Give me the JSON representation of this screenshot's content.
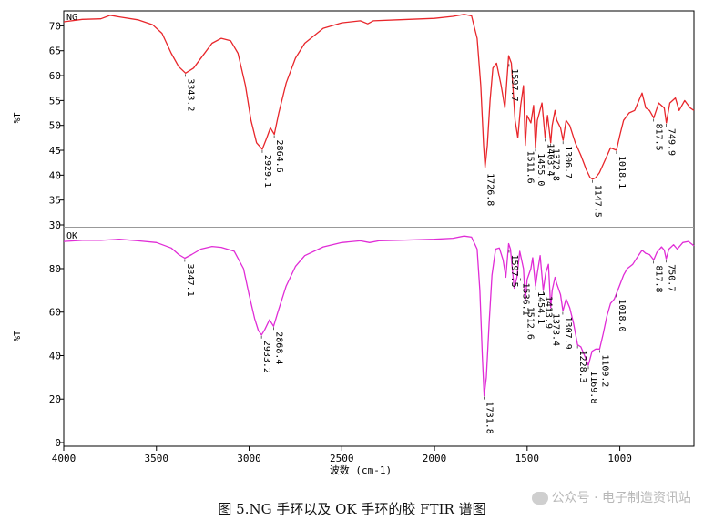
{
  "caption": "图 5.NG 手环以及 OK 手环的胶 FTIR 谱图",
  "watermark": "公众号 · 电子制造资讯站",
  "chart_data": {
    "type": "line",
    "x_label": "波数 (cm-1)",
    "x_range": [
      4000,
      600
    ],
    "x_ticks": [
      "4000",
      "3500",
      "3000",
      "2500",
      "2000",
      "1500",
      "1000"
    ],
    "x_tick_values": [
      4000,
      3500,
      3000,
      2500,
      2000,
      1500,
      1000
    ],
    "panels": [
      {
        "name": "NG",
        "y_label": "%T",
        "color": "#e8262b",
        "y_range": [
          30,
          73
        ],
        "y_ticks": [
          "70",
          "65",
          "60",
          "55",
          "50",
          "45",
          "40",
          "35",
          "30"
        ],
        "y_tick_values": [
          70,
          65,
          60,
          55,
          50,
          45,
          40,
          35,
          30
        ],
        "points": [
          [
            4000,
            70.8
          ],
          [
            3900,
            71.3
          ],
          [
            3800,
            71.4
          ],
          [
            3750,
            72.1
          ],
          [
            3700,
            71.8
          ],
          [
            3600,
            71.2
          ],
          [
            3520,
            70.2
          ],
          [
            3470,
            68.5
          ],
          [
            3420,
            64.5
          ],
          [
            3380,
            61.8
          ],
          [
            3343,
            60.5
          ],
          [
            3300,
            61.5
          ],
          [
            3250,
            64.0
          ],
          [
            3200,
            66.5
          ],
          [
            3150,
            67.5
          ],
          [
            3100,
            67.0
          ],
          [
            3060,
            64.5
          ],
          [
            3020,
            58.0
          ],
          [
            2990,
            51.0
          ],
          [
            2960,
            46.5
          ],
          [
            2929,
            45.2
          ],
          [
            2905,
            47.5
          ],
          [
            2885,
            49.5
          ],
          [
            2864,
            48.2
          ],
          [
            2840,
            52.5
          ],
          [
            2800,
            58.5
          ],
          [
            2750,
            63.5
          ],
          [
            2700,
            66.5
          ],
          [
            2600,
            69.5
          ],
          [
            2500,
            70.6
          ],
          [
            2400,
            71.0
          ],
          [
            2360,
            70.4
          ],
          [
            2330,
            71.0
          ],
          [
            2200,
            71.2
          ],
          [
            2000,
            71.5
          ],
          [
            1900,
            71.9
          ],
          [
            1840,
            72.3
          ],
          [
            1800,
            72.0
          ],
          [
            1770,
            67.5
          ],
          [
            1750,
            58.0
          ],
          [
            1735,
            46.0
          ],
          [
            1727,
            41.5
          ],
          [
            1715,
            46.0
          ],
          [
            1700,
            55.0
          ],
          [
            1685,
            61.5
          ],
          [
            1665,
            62.5
          ],
          [
            1640,
            58.0
          ],
          [
            1620,
            53.5
          ],
          [
            1600,
            64.0
          ],
          [
            1585,
            62.5
          ],
          [
            1565,
            51.0
          ],
          [
            1550,
            47.5
          ],
          [
            1535,
            54.0
          ],
          [
            1520,
            58.0
          ],
          [
            1510,
            46.0
          ],
          [
            1500,
            52.0
          ],
          [
            1480,
            50.5
          ],
          [
            1465,
            54.0
          ],
          [
            1455,
            45.5
          ],
          [
            1445,
            51.0
          ],
          [
            1420,
            54.5
          ],
          [
            1403,
            47.5
          ],
          [
            1390,
            52.0
          ],
          [
            1373,
            46.5
          ],
          [
            1365,
            50.0
          ],
          [
            1350,
            53.0
          ],
          [
            1340,
            51.0
          ],
          [
            1320,
            49.5
          ],
          [
            1306,
            47.0
          ],
          [
            1290,
            51.0
          ],
          [
            1270,
            50.0
          ],
          [
            1240,
            46.5
          ],
          [
            1210,
            44.0
          ],
          [
            1180,
            41.0
          ],
          [
            1160,
            39.5
          ],
          [
            1147,
            39.2
          ],
          [
            1130,
            39.5
          ],
          [
            1110,
            40.5
          ],
          [
            1080,
            43.0
          ],
          [
            1050,
            45.5
          ],
          [
            1018,
            45.0
          ],
          [
            1000,
            48.0
          ],
          [
            980,
            51.0
          ],
          [
            950,
            52.5
          ],
          [
            920,
            53.0
          ],
          [
            880,
            56.5
          ],
          [
            860,
            53.5
          ],
          [
            840,
            53.0
          ],
          [
            817,
            51.5
          ],
          [
            790,
            54.5
          ],
          [
            760,
            53.5
          ],
          [
            749,
            50.5
          ],
          [
            730,
            54.5
          ],
          [
            700,
            55.5
          ],
          [
            680,
            53.0
          ],
          [
            650,
            55.0
          ],
          [
            620,
            53.5
          ],
          [
            600,
            53.0
          ]
        ],
        "peak_labels": [
          {
            "x": 3343.2,
            "y": 60.5,
            "text": "3343.2"
          },
          {
            "x": 2929.1,
            "y": 45.2,
            "text": "2929.1"
          },
          {
            "x": 2864.6,
            "y": 48.2,
            "text": "2864.6"
          },
          {
            "x": 1726.8,
            "y": 41.5,
            "text": "1726.8"
          },
          {
            "x": 1597.7,
            "y": 62.5,
            "text": "1597.7"
          },
          {
            "x": 1511.6,
            "y": 46.0,
            "text": "1511.6"
          },
          {
            "x": 1455.0,
            "y": 45.5,
            "text": "1455.0"
          },
          {
            "x": 1403.4,
            "y": 47.5,
            "text": "1403.4"
          },
          {
            "x": 1372.8,
            "y": 46.5,
            "text": "1372.8"
          },
          {
            "x": 1306.7,
            "y": 47.0,
            "text": "1306.7"
          },
          {
            "x": 1147.5,
            "y": 39.2,
            "text": "1147.5"
          },
          {
            "x": 1018.1,
            "y": 45.0,
            "text": "1018.1"
          },
          {
            "x": 817.5,
            "y": 51.5,
            "text": "817.5"
          },
          {
            "x": 749.9,
            "y": 50.5,
            "text": "749.9"
          }
        ]
      },
      {
        "name": "OK",
        "y_label": "%T",
        "color": "#e02cd6",
        "y_range": [
          0,
          98
        ],
        "y_ticks": [
          "80",
          "60",
          "40",
          "20",
          "0"
        ],
        "y_tick_values": [
          80,
          60,
          40,
          20,
          0
        ],
        "points": [
          [
            4000,
            92.5
          ],
          [
            3900,
            93.0
          ],
          [
            3800,
            93.0
          ],
          [
            3700,
            93.5
          ],
          [
            3600,
            92.8
          ],
          [
            3500,
            92.0
          ],
          [
            3420,
            89.5
          ],
          [
            3380,
            86.5
          ],
          [
            3347,
            84.8
          ],
          [
            3310,
            86.5
          ],
          [
            3260,
            89.0
          ],
          [
            3200,
            90.2
          ],
          [
            3150,
            89.8
          ],
          [
            3080,
            88.0
          ],
          [
            3030,
            80.0
          ],
          [
            3000,
            68.0
          ],
          [
            2970,
            57.0
          ],
          [
            2950,
            51.5
          ],
          [
            2933,
            49.5
          ],
          [
            2915,
            52.0
          ],
          [
            2890,
            56.5
          ],
          [
            2868,
            53.5
          ],
          [
            2845,
            60.0
          ],
          [
            2800,
            72.0
          ],
          [
            2750,
            81.0
          ],
          [
            2700,
            86.0
          ],
          [
            2600,
            90.0
          ],
          [
            2500,
            92.0
          ],
          [
            2400,
            92.8
          ],
          [
            2350,
            92.0
          ],
          [
            2300,
            92.8
          ],
          [
            2200,
            93.0
          ],
          [
            2000,
            93.5
          ],
          [
            1900,
            94.0
          ],
          [
            1840,
            95.0
          ],
          [
            1800,
            94.5
          ],
          [
            1770,
            89.0
          ],
          [
            1755,
            70.0
          ],
          [
            1742,
            40.0
          ],
          [
            1732,
            21.5
          ],
          [
            1720,
            30.0
          ],
          [
            1705,
            55.0
          ],
          [
            1690,
            77.0
          ],
          [
            1670,
            89.0
          ],
          [
            1650,
            89.5
          ],
          [
            1630,
            84.0
          ],
          [
            1615,
            76.0
          ],
          [
            1600,
            91.5
          ],
          [
            1590,
            89.0
          ],
          [
            1570,
            71.0
          ],
          [
            1555,
            76.0
          ],
          [
            1540,
            88.0
          ],
          [
            1520,
            80.0
          ],
          [
            1510,
            65.0
          ],
          [
            1500,
            75.0
          ],
          [
            1480,
            80.0
          ],
          [
            1470,
            85.0
          ],
          [
            1455,
            72.0
          ],
          [
            1445,
            78.0
          ],
          [
            1430,
            86.0
          ],
          [
            1413,
            70.0
          ],
          [
            1400,
            78.0
          ],
          [
            1385,
            82.0
          ],
          [
            1373,
            62.0
          ],
          [
            1365,
            70.0
          ],
          [
            1350,
            76.0
          ],
          [
            1340,
            73.0
          ],
          [
            1320,
            68.0
          ],
          [
            1307,
            60.5
          ],
          [
            1290,
            66.0
          ],
          [
            1270,
            62.0
          ],
          [
            1250,
            55.0
          ],
          [
            1228,
            45.0
          ],
          [
            1210,
            44.0
          ],
          [
            1190,
            40.0
          ],
          [
            1170,
            35.5
          ],
          [
            1150,
            42.0
          ],
          [
            1130,
            43.0
          ],
          [
            1109,
            43.0
          ],
          [
            1090,
            50.0
          ],
          [
            1070,
            58.0
          ],
          [
            1050,
            64.0
          ],
          [
            1030,
            66.0
          ],
          [
            1018,
            68.5
          ],
          [
            1000,
            72.5
          ],
          [
            980,
            77.0
          ],
          [
            960,
            80.0
          ],
          [
            930,
            82.0
          ],
          [
            900,
            86.0
          ],
          [
            880,
            88.5
          ],
          [
            860,
            87.0
          ],
          [
            840,
            86.5
          ],
          [
            817,
            84.0
          ],
          [
            800,
            87.5
          ],
          [
            775,
            90.0
          ],
          [
            760,
            88.5
          ],
          [
            750,
            84.5
          ],
          [
            735,
            89.0
          ],
          [
            710,
            91.0
          ],
          [
            690,
            89.0
          ],
          [
            660,
            92.0
          ],
          [
            630,
            92.5
          ],
          [
            600,
            90.5
          ]
        ],
        "peak_labels": [
          {
            "x": 3347.1,
            "y": 84.8,
            "text": "3347.1"
          },
          {
            "x": 2933.2,
            "y": 49.5,
            "text": "2933.2"
          },
          {
            "x": 2868.4,
            "y": 53.5,
            "text": "2868.4"
          },
          {
            "x": 1731.8,
            "y": 21.5,
            "text": "1731.8"
          },
          {
            "x": 1597.5,
            "y": 89.0,
            "text": "1597.5"
          },
          {
            "x": 1536.1,
            "y": 76.0,
            "text": "1536.1"
          },
          {
            "x": 1512.6,
            "y": 65.0,
            "text": "1512.6"
          },
          {
            "x": 1454.1,
            "y": 72.0,
            "text": "1454.1"
          },
          {
            "x": 1413.9,
            "y": 70.0,
            "text": "1413.9"
          },
          {
            "x": 1373.4,
            "y": 62.0,
            "text": "1373.4"
          },
          {
            "x": 1307.9,
            "y": 60.5,
            "text": "1307.9"
          },
          {
            "x": 1228.3,
            "y": 45.0,
            "text": "1228.3"
          },
          {
            "x": 1169.8,
            "y": 35.5,
            "text": "1169.8"
          },
          {
            "x": 1109.2,
            "y": 43.0,
            "text": "1109.2"
          },
          {
            "x": 1018.0,
            "y": 68.5,
            "text": "1018.0"
          },
          {
            "x": 817.8,
            "y": 84.0,
            "text": "817.8"
          },
          {
            "x": 750.7,
            "y": 84.5,
            "text": "750.7"
          }
        ]
      }
    ]
  }
}
